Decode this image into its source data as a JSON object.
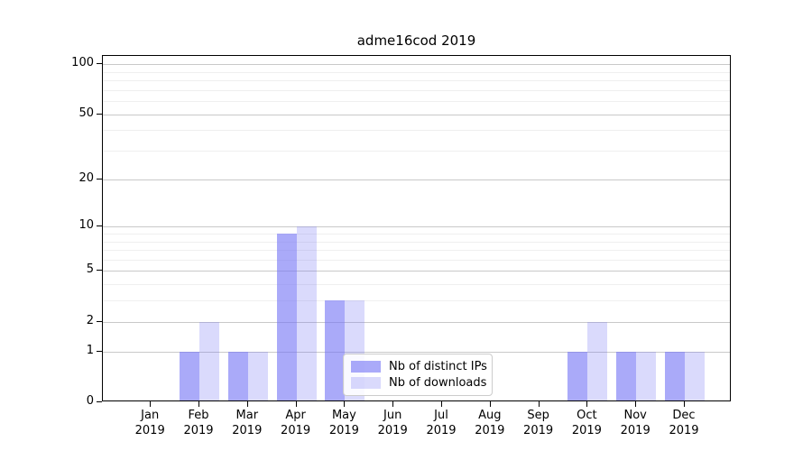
{
  "title": "adme16cod 2019",
  "chart_data": {
    "type": "bar",
    "categories": [
      "Jan",
      "Feb",
      "Mar",
      "Apr",
      "May",
      "Jun",
      "Jul",
      "Aug",
      "Sep",
      "Oct",
      "Nov",
      "Dec"
    ],
    "category_year": "2019",
    "series": [
      {
        "name": "Nb of distinct IPs",
        "color": "rgba(118,118,245,0.62)",
        "values": [
          0,
          1,
          1,
          9,
          3,
          0,
          0,
          0,
          0,
          1,
          1,
          1
        ]
      },
      {
        "name": "Nb of downloads",
        "color": "rgba(118,118,245,0.27)",
        "values": [
          0,
          2,
          1,
          10,
          3,
          0,
          0,
          0,
          0,
          2,
          1,
          1
        ]
      }
    ],
    "yscale": "log1p",
    "ylim": [
      0,
      112
    ],
    "yticks": [
      0,
      1,
      2,
      5,
      10,
      20,
      50,
      100
    ],
    "minor_yticks": [
      3,
      4,
      6,
      7,
      8,
      9,
      30,
      40,
      60,
      70,
      80,
      90
    ],
    "xlabel": "",
    "ylabel": "",
    "grid": true,
    "legend_position": "lower center",
    "colors": {
      "major_grid": "#c9c9c9",
      "minor_grid": "#efefef",
      "spine": "#000000",
      "background": "#ffffff"
    }
  }
}
